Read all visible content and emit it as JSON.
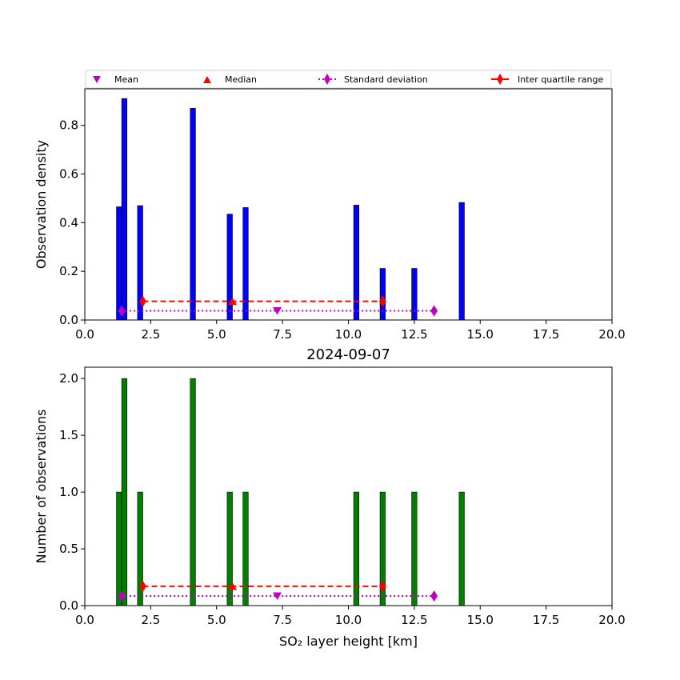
{
  "chart_data": [
    {
      "type": "bar",
      "panel": "top",
      "title": "",
      "xlabel": "",
      "ylabel": "Observation density",
      "xlim": [
        0,
        20
      ],
      "ylim": [
        0,
        0.95
      ],
      "xticks": [
        "0.0",
        "2.5",
        "5.0",
        "7.5",
        "10.0",
        "12.5",
        "15.0",
        "17.5",
        "20.0"
      ],
      "yticks": [
        "0.0",
        "0.2",
        "0.4",
        "0.6",
        "0.8"
      ],
      "bar_color": "#0000ff",
      "bar_width": 0.2,
      "bars": [
        {
          "x": 1.3,
          "value": 0.465
        },
        {
          "x": 1.5,
          "value": 0.91
        },
        {
          "x": 2.1,
          "value": 0.47
        },
        {
          "x": 4.1,
          "value": 0.87
        },
        {
          "x": 5.5,
          "value": 0.435
        },
        {
          "x": 6.1,
          "value": 0.462
        },
        {
          "x": 10.3,
          "value": 0.472
        },
        {
          "x": 11.3,
          "value": 0.212
        },
        {
          "x": 12.5,
          "value": 0.212
        },
        {
          "x": 14.3,
          "value": 0.483
        }
      ],
      "stats": {
        "mean": {
          "x": 7.3,
          "y": 0.038
        },
        "median": {
          "x": 5.6,
          "y": 0.077
        },
        "std": {
          "x": [
            1.4,
            13.25
          ],
          "y": 0.038
        },
        "iqr": {
          "x": [
            2.2,
            11.3
          ],
          "y": 0.077
        }
      },
      "legend": {
        "placement": "top",
        "entries": [
          "Mean",
          "Median",
          "Standard deviation",
          "Inter quartile range"
        ]
      }
    },
    {
      "type": "bar",
      "panel": "bottom",
      "title": "2024-09-07",
      "xlabel": "SO₂ layer height [km]",
      "ylabel": "Number of observations",
      "xlim": [
        0,
        20
      ],
      "ylim": [
        0,
        2.1
      ],
      "xticks": [
        "0.0",
        "2.5",
        "5.0",
        "7.5",
        "10.0",
        "12.5",
        "15.0",
        "17.5",
        "20.0"
      ],
      "yticks": [
        "0.0",
        "0.5",
        "1.0",
        "1.5",
        "2.0"
      ],
      "bar_color": "#008000",
      "bar_width": 0.2,
      "bars": [
        {
          "x": 1.3,
          "value": 1
        },
        {
          "x": 1.5,
          "value": 2
        },
        {
          "x": 2.1,
          "value": 1
        },
        {
          "x": 4.1,
          "value": 2
        },
        {
          "x": 5.5,
          "value": 1
        },
        {
          "x": 6.1,
          "value": 1
        },
        {
          "x": 10.3,
          "value": 1
        },
        {
          "x": 11.3,
          "value": 1
        },
        {
          "x": 12.5,
          "value": 1
        },
        {
          "x": 14.3,
          "value": 1
        }
      ],
      "stats": {
        "mean": {
          "x": 7.3,
          "y": 0.085
        },
        "median": {
          "x": 5.6,
          "y": 0.17
        },
        "std": {
          "x": [
            1.4,
            13.25
          ],
          "y": 0.085
        },
        "iqr": {
          "x": [
            2.2,
            11.3
          ],
          "y": 0.17
        }
      }
    }
  ],
  "colors": {
    "mean": "#bf00bf",
    "median": "#ff0000",
    "std": "#bf00bf",
    "iqr": "#ff0000"
  }
}
